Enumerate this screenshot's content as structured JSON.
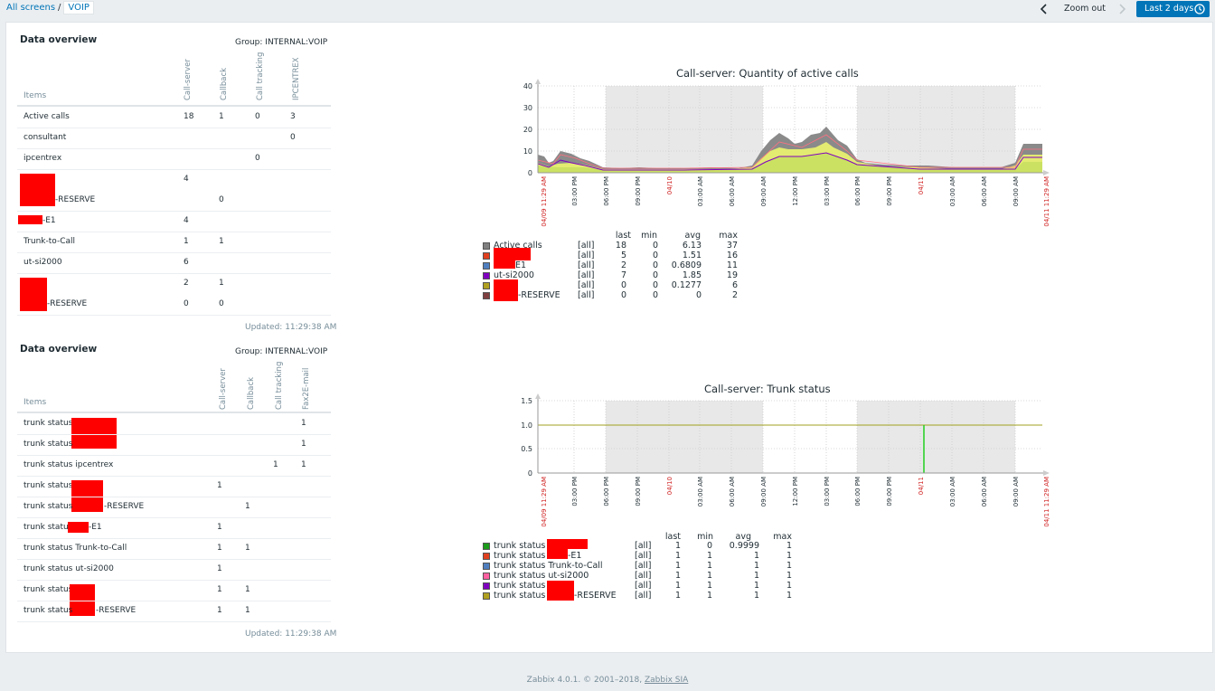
{
  "breadcrumb": {
    "root": "All screens",
    "separator": "/",
    "current": "VOIP"
  },
  "toolbar": {
    "zoom_out": "Zoom out",
    "period": "Last 2 days"
  },
  "overview1": {
    "title": "Data overview",
    "group": "Group: INTERNAL:VOIP",
    "items_header": "Items",
    "columns": [
      "Call-server",
      "Callback",
      "Call tracking",
      "IPCENTREX"
    ],
    "rows": [
      {
        "label": "Active calls",
        "values": [
          "18",
          "1",
          "0",
          "3"
        ]
      },
      {
        "label": "consultant",
        "values": [
          "",
          "",
          "",
          "0"
        ]
      },
      {
        "label": "ipcentrex",
        "values": [
          "",
          "",
          "0",
          ""
        ]
      },
      {
        "label": "",
        "values": [
          "4",
          "",
          "",
          ""
        ]
      },
      {
        "label": "-RESERVE",
        "values": [
          "",
          "0",
          "",
          ""
        ]
      },
      {
        "label": "-E1",
        "values": [
          "4",
          "",
          "",
          ""
        ]
      },
      {
        "label": "Trunk-to-Call",
        "values": [
          "1",
          "1",
          "",
          ""
        ]
      },
      {
        "label": "ut-si2000",
        "values": [
          "6",
          "",
          "",
          ""
        ]
      },
      {
        "label": "",
        "values": [
          "2",
          "1",
          "",
          ""
        ]
      },
      {
        "label": "-RESERVE",
        "values": [
          "0",
          "0",
          "",
          ""
        ]
      }
    ],
    "updated": "Updated: 11:29:38 AM"
  },
  "overview2": {
    "title": "Data overview",
    "group": "Group: INTERNAL:VOIP",
    "items_header": "Items",
    "columns": [
      "Call-server",
      "Callback",
      "Call tracking",
      "Fax2E-mail"
    ],
    "rows": [
      {
        "label": "trunk status",
        "values": [
          "",
          "",
          "",
          "1"
        ]
      },
      {
        "label": "trunk status",
        "values": [
          "",
          "",
          "",
          "1"
        ]
      },
      {
        "label": "trunk status ipcentrex",
        "values": [
          "",
          "",
          "1",
          "1"
        ]
      },
      {
        "label": "trunk status",
        "values": [
          "1",
          "",
          "",
          ""
        ]
      },
      {
        "label": "trunk status",
        "suffix": "-RESERVE",
        "values": [
          "",
          "1",
          "",
          ""
        ]
      },
      {
        "label": "trunk status",
        "suffix": "-E1",
        "values": [
          "1",
          "",
          "",
          ""
        ]
      },
      {
        "label": "trunk status Trunk-to-Call",
        "values": [
          "1",
          "1",
          "",
          ""
        ]
      },
      {
        "label": "trunk status ut-si2000",
        "values": [
          "1",
          "",
          "",
          ""
        ]
      },
      {
        "label": "trunk status",
        "values": [
          "1",
          "1",
          "",
          ""
        ]
      },
      {
        "label": "trunk status",
        "suffix": "-RESERVE",
        "values": [
          "1",
          "1",
          "",
          ""
        ]
      }
    ],
    "updated": "Updated: 11:29:38 AM"
  },
  "graph1": {
    "title": "Call-server: Quantity of active calls",
    "y_ticks": [
      "40",
      "30",
      "20",
      "10",
      "0"
    ],
    "x_ticks": [
      "04/09 11:29 AM",
      "03:00 PM",
      "06:00 PM",
      "09:00 PM",
      "04/10",
      "03:00 AM",
      "06:00 AM",
      "09:00 AM",
      "12:00 PM",
      "03:00 PM",
      "06:00 PM",
      "09:00 PM",
      "04/11",
      "03:00 AM",
      "06:00 AM",
      "09:00 AM",
      "04/11 11:29 AM"
    ],
    "legend_headers": [
      "last",
      "min",
      "avg",
      "max"
    ],
    "legend": [
      {
        "name": "Active calls",
        "color": "#808080",
        "fn": "[all]",
        "last": "18",
        "min": "0",
        "avg": "6.13",
        "max": "37"
      },
      {
        "name": "",
        "color": "#e04020",
        "fn": "[all]",
        "last": "5",
        "min": "0",
        "avg": "1.51",
        "max": "16"
      },
      {
        "name": "E1",
        "color": "#4f7fbf",
        "fn": "[all]",
        "last": "2",
        "min": "0",
        "avg": "0.6809",
        "max": "11"
      },
      {
        "name": "ut-si2000",
        "color": "#8000c0",
        "fn": "[all]",
        "last": "7",
        "min": "0",
        "avg": "1.85",
        "max": "19"
      },
      {
        "name": "",
        "color": "#b0a020",
        "fn": "[all]",
        "last": "0",
        "min": "0",
        "avg": "0.1277",
        "max": "6"
      },
      {
        "name": "-RESERVE",
        "color": "#804040",
        "fn": "[all]",
        "last": "0",
        "min": "0",
        "avg": "0",
        "max": "2"
      }
    ]
  },
  "graph2": {
    "title": "Call-server: Trunk status",
    "y_ticks": [
      "1.5",
      "1.0",
      "0.5",
      "0"
    ],
    "x_ticks": [
      "04/09 11:29 AM",
      "03:00 PM",
      "06:00 PM",
      "09:00 PM",
      "04/10",
      "03:00 AM",
      "06:00 AM",
      "09:00 AM",
      "12:00 PM",
      "03:00 PM",
      "06:00 PM",
      "09:00 PM",
      "04/11",
      "03:00 AM",
      "06:00 AM",
      "09:00 AM",
      "04/11 11:29 AM"
    ],
    "legend_headers": [
      "last",
      "min",
      "avg",
      "max"
    ],
    "legend": [
      {
        "name": "trunk status",
        "color": "#1a9c1a",
        "fn": "[all]",
        "last": "1",
        "min": "0",
        "avg": "0.9999",
        "max": "1"
      },
      {
        "name": "trunk status",
        "suffix": "-E1",
        "color": "#e04020",
        "fn": "[all]",
        "last": "1",
        "min": "1",
        "avg": "1",
        "max": "1"
      },
      {
        "name": "trunk status Trunk-to-Call",
        "color": "#4f7fbf",
        "fn": "[all]",
        "last": "1",
        "min": "1",
        "avg": "1",
        "max": "1"
      },
      {
        "name": "trunk status ut-si2000",
        "color": "#ff60a0",
        "fn": "[all]",
        "last": "1",
        "min": "1",
        "avg": "1",
        "max": "1"
      },
      {
        "name": "trunk status",
        "color": "#8000c0",
        "fn": "[all]",
        "last": "1",
        "min": "1",
        "avg": "1",
        "max": "1"
      },
      {
        "name": "trunk status",
        "suffix": "-RESERVE",
        "color": "#b0a020",
        "fn": "[all]",
        "last": "1",
        "min": "1",
        "avg": "1",
        "max": "1"
      }
    ]
  },
  "footer": {
    "text": "Zabbix 4.0.1. © 2001–2018,",
    "link": "Zabbix SIA"
  },
  "colors": {
    "accent": "#0275b8",
    "redacted": "#ff0000"
  }
}
